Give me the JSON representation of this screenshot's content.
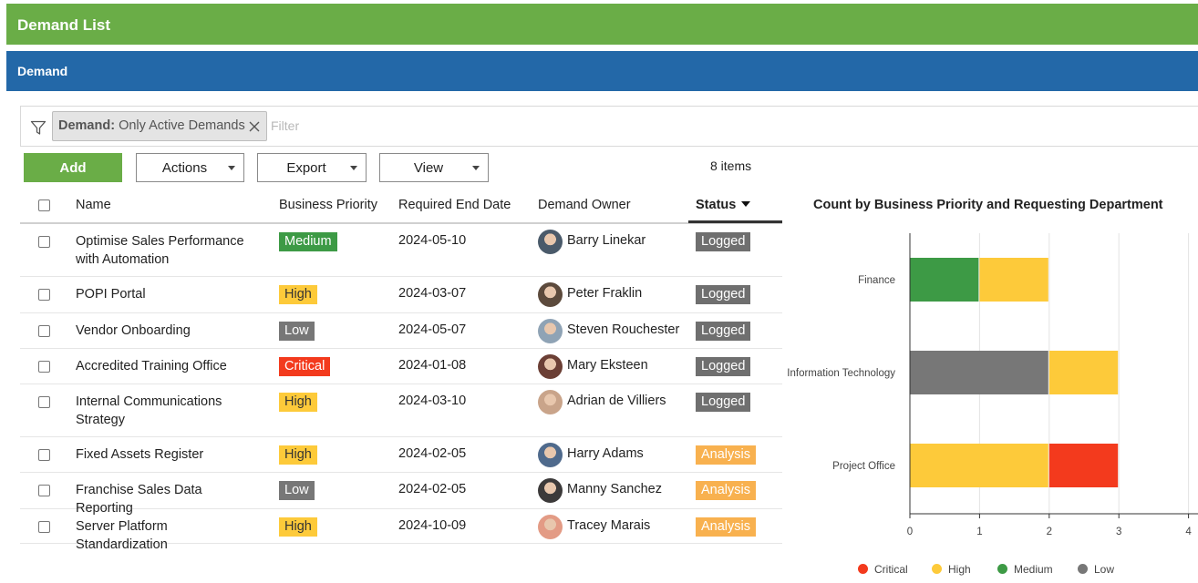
{
  "header": {
    "title": "Demand List"
  },
  "section": {
    "title": "Demand"
  },
  "filter": {
    "chip_key": "Demand:",
    "chip_value": " Only Active Demands",
    "placeholder": "Filter",
    "icon": "filter-icon"
  },
  "toolbar": {
    "add_label": "Add",
    "actions_label": "Actions",
    "export_label": "Export",
    "view_label": "View",
    "items_count": "8 items"
  },
  "columns": {
    "name": "Name",
    "business_priority": "Business Priority",
    "required_end_date": "Required End Date",
    "demand_owner": "Demand Owner",
    "status": "Status"
  },
  "rows": [
    {
      "name": "Optimise Sales Performance with Automation",
      "priority": "Medium",
      "date": "2024-05-10",
      "owner": "Barry Linekar",
      "status": "Logged"
    },
    {
      "name": "POPI Portal",
      "priority": "High",
      "date": "2024-03-07",
      "owner": "Peter Fraklin",
      "status": "Logged"
    },
    {
      "name": "Vendor Onboarding",
      "priority": "Low",
      "date": "2024-05-07",
      "owner": "Steven Rouchester",
      "status": "Logged"
    },
    {
      "name": "Accredited Training Office",
      "priority": "Critical",
      "date": "2024-01-08",
      "owner": "Mary Eksteen",
      "status": "Logged"
    },
    {
      "name": "Internal Communications Strategy",
      "priority": "High",
      "date": "2024-03-10",
      "owner": "Adrian de Villiers",
      "status": "Logged"
    },
    {
      "name": "Fixed Assets Register",
      "priority": "High",
      "date": "2024-02-05",
      "owner": "Harry Adams",
      "status": "Analysis"
    },
    {
      "name": "Franchise Sales Data Reporting",
      "priority": "Low",
      "date": "2024-02-05",
      "owner": "Manny Sanchez",
      "status": "Analysis"
    },
    {
      "name": "Server Platform Standardization",
      "priority": "High",
      "date": "2024-10-09",
      "owner": "Tracey Marais",
      "status": "Analysis"
    }
  ],
  "colors": {
    "header_green": "#6aad47",
    "section_blue": "#2368a8",
    "critical": "#f33a1d",
    "high": "#fdca3a",
    "medium": "#3d9a45",
    "low": "#777777",
    "logged": "#6f6f6f",
    "analysis": "#f8b14f"
  },
  "chart_data": {
    "type": "bar",
    "orientation": "horizontal",
    "stacked": true,
    "title": "Count by Business Priority and Requesting Department",
    "categories": [
      "Finance",
      "Information Technology",
      "Project Office"
    ],
    "series": [
      {
        "name": "Medium",
        "color": "#3d9a45",
        "values": [
          1,
          0,
          0
        ]
      },
      {
        "name": "Low",
        "color": "#777777",
        "values": [
          0,
          2,
          0
        ]
      },
      {
        "name": "High",
        "color": "#fdca3a",
        "values": [
          1,
          1,
          2
        ]
      },
      {
        "name": "Critical",
        "color": "#f33a1d",
        "values": [
          0,
          0,
          1
        ]
      }
    ],
    "xlim": [
      0,
      4
    ],
    "xticks": [
      "0",
      "1",
      "2",
      "3",
      "4"
    ],
    "grid": true,
    "legend": {
      "position": "bottom",
      "entries": [
        "Critical",
        "High",
        "Medium",
        "Low"
      ]
    }
  }
}
